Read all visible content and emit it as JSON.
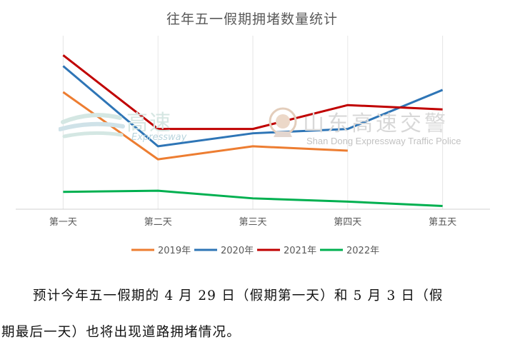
{
  "chart_data": {
    "type": "line",
    "title": "往年五一假期拥堵数量统计",
    "categories": [
      "第一天",
      "第二天",
      "第三天",
      "第四天",
      "第五天"
    ],
    "series": [
      {
        "name": "2019年",
        "color": "#ed7d31",
        "values": [
          5.4,
          2.3,
          2.9,
          2.7,
          null
        ]
      },
      {
        "name": "2020年",
        "color": "#2e75b6",
        "values": [
          6.6,
          2.9,
          3.5,
          3.7,
          5.5
        ]
      },
      {
        "name": "2021年",
        "color": "#c00000",
        "values": [
          7.1,
          3.7,
          3.7,
          4.8,
          4.6
        ]
      },
      {
        "name": "2022年",
        "color": "#00b050",
        "values": [
          0.8,
          0.85,
          0.5,
          0.35,
          0.15
        ]
      }
    ],
    "ylim": [
      0,
      8
    ],
    "grid": "vertical",
    "legend": "bottom"
  },
  "watermarks": {
    "left_main": "高速",
    "left_sub": "Expressway",
    "right_main": "山东高速交警",
    "right_sub": "Shan Dong Expressway Traffic Police"
  },
  "paragraph": {
    "line1": "预计今年五一假期的 4 月 29 日（假期第一天）和 5 月 3 日（假",
    "line2": "期最后一天）也将出现道路拥堵情况。"
  }
}
